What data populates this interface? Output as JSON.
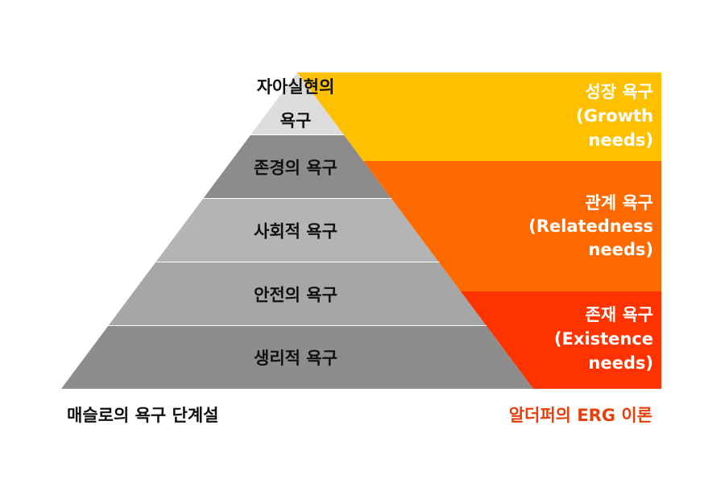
{
  "maslow": {
    "tiers": [
      {
        "lines": [
          "자아실현의",
          "욕구"
        ],
        "color": "#dddddd"
      },
      {
        "lines": [
          "존경의 욕구"
        ],
        "color": "#8c8c8c"
      },
      {
        "lines": [
          "사회적 욕구"
        ],
        "color": "#b4b4b4"
      },
      {
        "lines": [
          "안전의 욕구"
        ],
        "color": "#a6a6a6"
      },
      {
        "lines": [
          "생리적 욕구"
        ],
        "color": "#8d8d8d"
      }
    ],
    "caption": "매슬로의 욕구 단계설"
  },
  "erg": {
    "bands": [
      {
        "lines": [
          "성장 욕구",
          "(Growth",
          "needs)"
        ],
        "color": "#ffc000"
      },
      {
        "lines": [
          "관계 욕구",
          "(Relatedness",
          "needs)"
        ],
        "color": "#ff6a00"
      },
      {
        "lines": [
          "존재 욕구",
          "(Existence",
          "needs)"
        ],
        "color": "#ff3300"
      }
    ],
    "caption": "알더퍼의 ERG 이론"
  }
}
